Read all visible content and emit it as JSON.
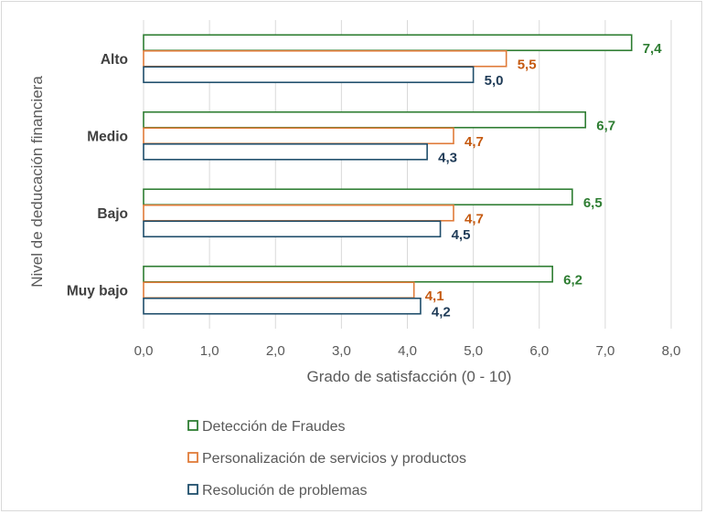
{
  "chart_data": {
    "type": "bar",
    "orientation": "horizontal",
    "categories": [
      "Alto",
      "Medio",
      "Bajo",
      "Muy bajo"
    ],
    "series": [
      {
        "name": "Detección de Fraudes",
        "values": [
          7.4,
          6.7,
          6.5,
          6.2
        ],
        "labels": [
          "7,4",
          "6,7",
          "6,5",
          "6,2"
        ],
        "color": "#2e7d32"
      },
      {
        "name": "Personalización de servicios y productos",
        "values": [
          5.5,
          4.7,
          4.7,
          4.1
        ],
        "labels": [
          "5,5",
          "4,7",
          "4,7",
          "4,1"
        ],
        "color": "#e07b39"
      },
      {
        "name": "Resolución de problemas",
        "values": [
          5.0,
          4.3,
          4.5,
          4.2
        ],
        "labels": [
          "5,0",
          "4,3",
          "4,5",
          "4,2"
        ],
        "color": "#1f4e6b"
      }
    ],
    "xlabel": "Grado de satisfacción (0 - 10)",
    "ylabel": "Nivel de deducación financiera",
    "xlim": [
      0,
      8
    ],
    "xticks": [
      0,
      1,
      2,
      3,
      4,
      5,
      6,
      7,
      8
    ],
    "xtick_labels": [
      "0,0",
      "1,0",
      "2,0",
      "3,0",
      "4,0",
      "5,0",
      "6,0",
      "7,0",
      "8,0"
    ],
    "label_colors": [
      "#2e7d32",
      "#c55a11",
      "#1f3b57"
    ],
    "grid": "vertical",
    "legend_position": "bottom"
  }
}
